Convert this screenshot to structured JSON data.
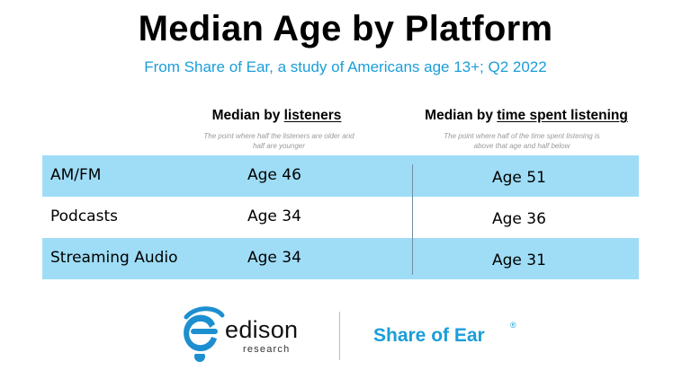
{
  "header": {
    "title": "Median Age by Platform",
    "subtitle": "From Share of Ear, a study of Americans age 13+; Q2 2022"
  },
  "columns": [
    {
      "label_prefix": "Median by ",
      "label_emphasis": "listeners",
      "note": "The point where half the listeners are older and half are younger"
    },
    {
      "label_prefix": "Median by ",
      "label_emphasis": "time spent listening",
      "note": "The point where half of the time spent listening is above that age and half below"
    }
  ],
  "rows": [
    {
      "platform": "AM/FM",
      "by_listeners": "Age 46",
      "by_time_spent": "Age 51"
    },
    {
      "platform": "Podcasts",
      "by_listeners": "Age 34",
      "by_time_spent": "Age 36"
    },
    {
      "platform": "Streaming Audio",
      "by_listeners": "Age 34",
      "by_time_spent": "Age 31"
    }
  ],
  "footer": {
    "edison_name": "edison",
    "edison_tagline": "research",
    "share_of_ear": "Share of Ear",
    "registered_mark": "®"
  },
  "colors": {
    "accent": "#1a9ed9",
    "row_shade": "#9fddf6",
    "divider": "#6d8fa5",
    "note_gray": "#9a9a9a",
    "logo_blue": "#1c8fd0"
  }
}
